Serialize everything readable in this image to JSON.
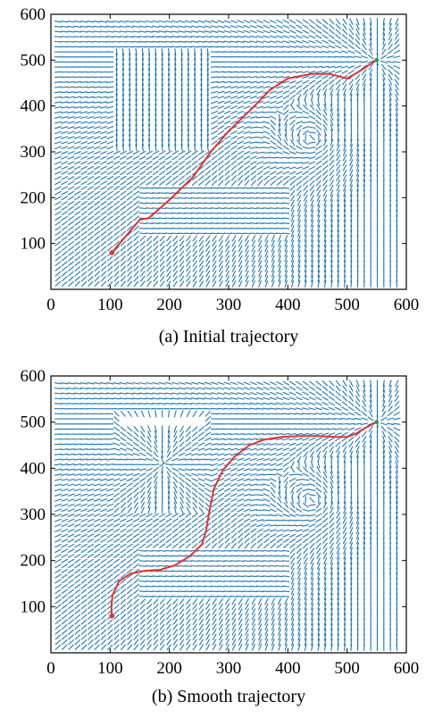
{
  "chart_data": [
    {
      "type": "vector-field",
      "caption": "(a) Initial trajectory",
      "xlim": [
        0,
        600
      ],
      "ylim": [
        0,
        600
      ],
      "xticks": [
        0,
        100,
        200,
        300,
        400,
        500,
        600
      ],
      "yticks": [
        100,
        200,
        300,
        400,
        500,
        600
      ],
      "field_color": "#1f77b4",
      "series": [
        {
          "color": "#e8302c",
          "x": [
            103,
            150,
            165,
            200,
            240,
            270,
            300,
            340,
            370,
            400,
            440,
            470,
            500,
            520,
            550
          ],
          "y": [
            80,
            152,
            155,
            195,
            245,
            300,
            345,
            395,
            435,
            460,
            470,
            470,
            460,
            475,
            500
          ]
        }
      ],
      "start": [
        103,
        80
      ],
      "goal": [
        550,
        500
      ]
    },
    {
      "type": "vector-field",
      "caption": "(b) Smooth trajectory",
      "xlim": [
        0,
        600
      ],
      "ylim": [
        0,
        600
      ],
      "xticks": [
        0,
        100,
        200,
        300,
        400,
        500,
        600
      ],
      "yticks": [
        100,
        200,
        300,
        400,
        500,
        600
      ],
      "field_color": "#1f77b4",
      "series": [
        {
          "color": "#e8302c",
          "x": [
            103,
            102,
            104,
            115,
            135,
            160,
            185,
            210,
            235,
            255,
            262,
            268,
            275,
            290,
            310,
            335,
            360,
            390,
            420,
            450,
            480,
            500,
            515,
            530,
            550
          ],
          "y": [
            80,
            100,
            125,
            155,
            172,
            178,
            180,
            190,
            210,
            235,
            265,
            310,
            355,
            395,
            425,
            450,
            462,
            468,
            470,
            470,
            468,
            468,
            475,
            487,
            500
          ]
        }
      ],
      "start": [
        103,
        80
      ],
      "goal": [
        550,
        500
      ]
    }
  ]
}
